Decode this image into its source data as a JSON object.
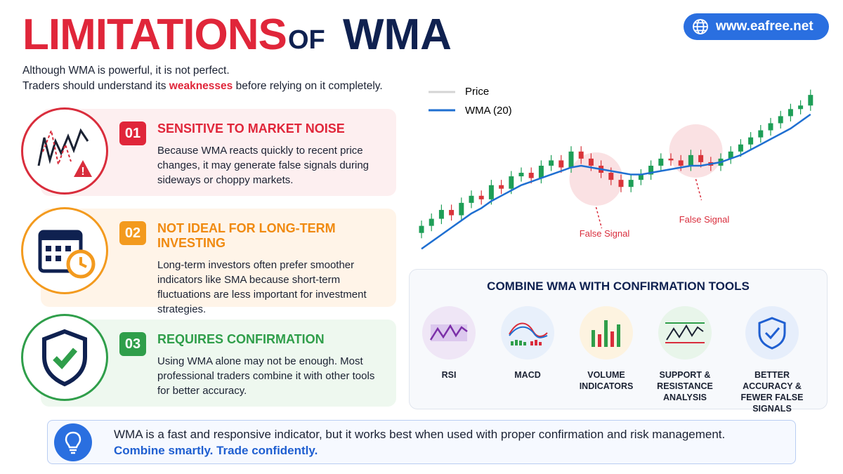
{
  "header": {
    "title_1": "LIMITATIONS",
    "title_2": "OF",
    "title_3": "WMA",
    "url": "www.eafree.net",
    "intro_1": "Although WMA is powerful, it is not perfect.",
    "intro_2a": "Traders should understand its ",
    "intro_2b": "weaknesses",
    "intro_2c": " before relying on it completely."
  },
  "cards": [
    {
      "number": "01",
      "title": "SENSITIVE TO MARKET NOISE",
      "text": "Because WMA reacts quickly to recent price changes, it may generate false signals during sideways or choppy markets."
    },
    {
      "number": "02",
      "title": "NOT IDEAL FOR LONG-TERM INVESTING",
      "text": "Long-term investors often prefer smoother indicators like SMA because short-term fluctuations are less important for investment strategies."
    },
    {
      "number": "03",
      "title": "REQUIRES CONFIRMATION",
      "text": "Using WMA alone may not be enough. Most professional traders combine it with other tools for better accuracy."
    }
  ],
  "tools": {
    "title": "COMBINE WMA WITH CONFIRMATION TOOLS",
    "items": [
      "RSI",
      "MACD",
      "VOLUME INDICATORS",
      "SUPPORT & RESISTANCE ANALYSIS",
      "BETTER ACCURACY & FEWER FALSE SIGNALS"
    ]
  },
  "footer": {
    "text": "WMA is a fast and responsive indicator, but it works best when used with proper confirmation and risk management.",
    "tagline": "Combine smartly. Trade confidently."
  },
  "chart_data": {
    "type": "candlestick",
    "ylim": [
      0,
      100
    ],
    "annotations": [
      "False Signal",
      "False Signal"
    ],
    "series": [
      {
        "name": "Price",
        "color": "#d4d4d4",
        "up_color": "#1e9e57",
        "down_color": "#d9343a",
        "open": [
          14,
          18,
          22,
          27,
          24,
          31,
          35,
          33,
          41,
          39,
          46,
          48,
          45,
          52,
          55,
          51,
          60,
          56,
          52,
          48,
          44,
          40,
          44,
          47,
          52,
          56,
          55,
          52,
          58,
          54,
          52,
          56,
          60,
          64,
          68,
          72,
          76,
          80,
          84,
          86
        ],
        "high": [
          21,
          25,
          30,
          30,
          34,
          38,
          38,
          44,
          44,
          49,
          51,
          51,
          55,
          58,
          58,
          63,
          63,
          59,
          55,
          51,
          47,
          47,
          50,
          55,
          59,
          59,
          58,
          61,
          61,
          57,
          59,
          63,
          67,
          71,
          75,
          79,
          83,
          87,
          89,
          95
        ],
        "low": [
          11,
          15,
          19,
          21,
          21,
          28,
          30,
          30,
          36,
          36,
          43,
          42,
          42,
          49,
          48,
          48,
          53,
          49,
          45,
          41,
          37,
          37,
          41,
          44,
          49,
          52,
          49,
          49,
          51,
          49,
          49,
          53,
          57,
          61,
          65,
          69,
          73,
          77,
          81,
          83
        ],
        "close": [
          18,
          22,
          27,
          24,
          31,
          35,
          33,
          41,
          39,
          46,
          48,
          45,
          52,
          55,
          51,
          60,
          56,
          52,
          48,
          44,
          40,
          44,
          47,
          52,
          56,
          55,
          52,
          58,
          54,
          52,
          56,
          60,
          64,
          68,
          72,
          76,
          80,
          84,
          86,
          92
        ]
      },
      {
        "name": "WMA (20)",
        "color": "#1f6fd1",
        "values": [
          5,
          9,
          13,
          17,
          21,
          25,
          28,
          32,
          35,
          38,
          41,
          43,
          45,
          47,
          49,
          51,
          52,
          51,
          50,
          49,
          48,
          47,
          47,
          48,
          49,
          50,
          51,
          52,
          52,
          53,
          54,
          56,
          58,
          61,
          64,
          67,
          70,
          73,
          77,
          81
        ]
      }
    ]
  }
}
